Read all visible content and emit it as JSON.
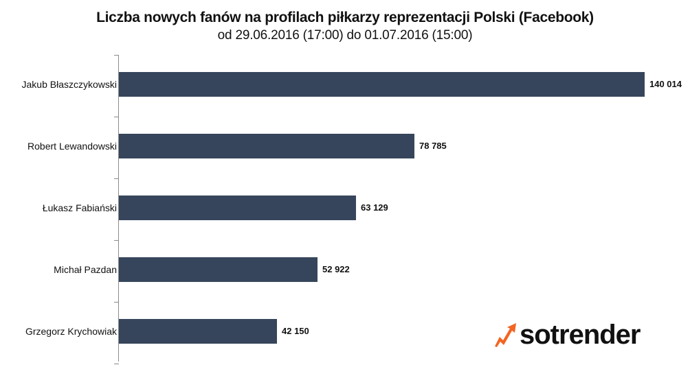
{
  "chart_data": {
    "type": "bar",
    "orientation": "horizontal",
    "title": "Liczba nowych fanów na profilach piłkarzy reprezentacji Polski (Facebook)",
    "subtitle": "od 29.06.2016  (17:00)  do 01.07.2016  (15:00)",
    "xlabel": "",
    "ylabel": "",
    "categories": [
      "Jakub Błaszczykowski",
      "Robert Lewandowski",
      "Łukasz Fabiański",
      "Michał Pazdan",
      "Grzegorz Krychowiak"
    ],
    "values": [
      140014,
      78785,
      63129,
      52922,
      42150
    ],
    "value_labels": [
      "140 014",
      "78 785",
      "63 129",
      "52 922",
      "42 150"
    ],
    "grid": false,
    "legend": null,
    "bar_color": "#36455b"
  },
  "branding": {
    "logo_text": "sotrender",
    "logo_icon": "trend-arrow-icon",
    "accent_color": "#f26522"
  }
}
